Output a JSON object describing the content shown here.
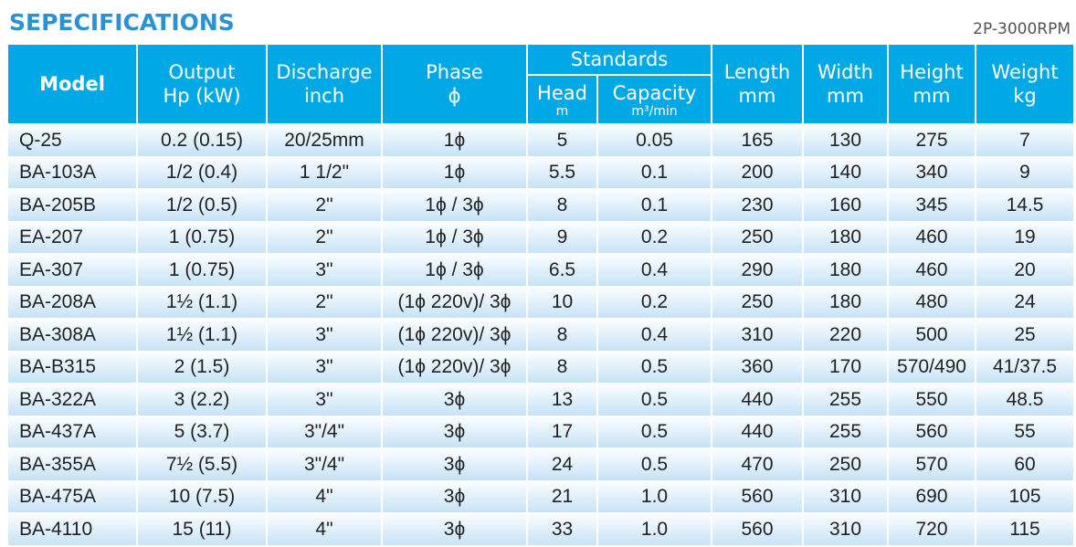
{
  "title": "SEPECIFICATIONS",
  "subtitle": "2P-3000RPM",
  "headers": {
    "model": "Model",
    "output1": "Output",
    "output2": "Hp  (kW)",
    "discharge1": "Discharge",
    "discharge2": "inch",
    "phase1": "Phase",
    "phase2": "ϕ",
    "standards": "Standards",
    "head1": "Head",
    "head2": "m",
    "capacity1": "Capacity",
    "capacity2": "m³/min",
    "length1": "Length",
    "length2": "mm",
    "width1": "Width",
    "width2": "mm",
    "height1": "Height",
    "height2": "mm",
    "weight1": "Weight",
    "weight2": "kg"
  },
  "rows": [
    [
      "Q-25",
      "0.2  (0.15)",
      "20/25mm",
      "1ϕ",
      "5",
      "0.05",
      "165",
      "130",
      "275",
      "7"
    ],
    [
      "BA-103A",
      "1/2  (0.4)",
      "1 1/2\"",
      "1ϕ",
      "5.5",
      "0.1",
      "200",
      "140",
      "340",
      "9"
    ],
    [
      "BA-205B",
      "1/2  (0.5)",
      "2\"",
      "1ϕ / 3ϕ",
      "8",
      "0.1",
      "230",
      "160",
      "345",
      "14.5"
    ],
    [
      "EA-207",
      "1  (0.75)",
      "2\"",
      "1ϕ / 3ϕ",
      "9",
      "0.2",
      "250",
      "180",
      "460",
      "19"
    ],
    [
      "EA-307",
      "1  (0.75)",
      "3\"",
      "1ϕ / 3ϕ",
      "6.5",
      "0.4",
      "290",
      "180",
      "460",
      "20"
    ],
    [
      "BA-208A",
      "1½  (1.1)",
      "2\"",
      "(1ϕ 220v)/ 3ϕ",
      "10",
      "0.2",
      "250",
      "180",
      "480",
      "24"
    ],
    [
      "BA-308A",
      "1½  (1.1)",
      "3\"",
      "(1ϕ 220v)/ 3ϕ",
      "8",
      "0.4",
      "310",
      "220",
      "500",
      "25"
    ],
    [
      "BA-B315",
      "2  (1.5)",
      "3\"",
      "(1ϕ 220v)/ 3ϕ",
      "8",
      "0.5",
      "360",
      "170",
      "570/490",
      "41/37.5"
    ],
    [
      "BA-322A",
      "3  (2.2)",
      "3\"",
      "3ϕ",
      "13",
      "0.5",
      "440",
      "255",
      "550",
      "48.5"
    ],
    [
      "BA-437A",
      "5  (3.7)",
      "3\"/4\"",
      "3ϕ",
      "17",
      "0.5",
      "440",
      "255",
      "560",
      "55"
    ],
    [
      "BA-355A",
      "7½  (5.5)",
      "3\"/4\"",
      "3ϕ",
      "24",
      "0.5",
      "470",
      "250",
      "570",
      "60"
    ],
    [
      "BA-475A",
      "10  (7.5)",
      "4\"",
      "3ϕ",
      "21",
      "1.0",
      "560",
      "310",
      "690",
      "105"
    ],
    [
      "BA-4110",
      "15  (11)",
      "4\"",
      "3ϕ",
      "33",
      "1.0",
      "560",
      "310",
      "720",
      "115"
    ]
  ],
  "colors": {
    "header": "#00a9e6",
    "title": "#2b92d2"
  }
}
